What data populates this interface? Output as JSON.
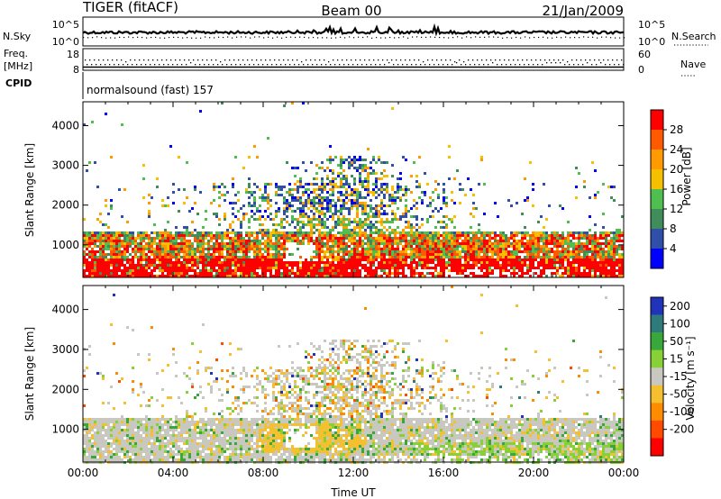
{
  "header": {
    "radar": "TIGER (fitACF)",
    "beam": "Beam 00",
    "date": "21/Jan/2009"
  },
  "side_labels": {
    "nsky": "N.Sky",
    "nsearch": "N.Search",
    "freq": "Freq.",
    "freq_unit": "[MHz]",
    "nave": "Nave",
    "cpid": "CPID"
  },
  "strip_ticks": {
    "nsky_top": "10^5",
    "nsky_bottom": "10^0",
    "nsearch_top": "10^5",
    "nsearch_bottom": "10^0",
    "freq_top": "18",
    "freq_bottom": "8",
    "nave_top": "60",
    "nave_bottom": "0"
  },
  "cpid_text": "normalsound (fast) 157",
  "colors": {
    "power": [
      "#0000ff",
      "#2f4faa",
      "#3e8d5a",
      "#4fc04f",
      "#f5c000",
      "#ff9a00",
      "#ff5a00",
      "#ff0000"
    ],
    "velocity": [
      "#2233bb",
      "#2f7a7a",
      "#38a83a",
      "#88d038",
      "#c8c8c0",
      "#f5c030",
      "#ff8c00",
      "#ff4a00",
      "#ff0000"
    ]
  },
  "chart_data": [
    {
      "type": "heatmap",
      "xlabel": "",
      "ylabel": "Slant Range [km]",
      "x_ticks": [
        "00:00",
        "04:00",
        "08:00",
        "12:00",
        "16:00",
        "20:00",
        "00:00"
      ],
      "y_ticks": [
        1000,
        2000,
        3000,
        4000
      ],
      "ylim": [
        180,
        4600
      ],
      "colorbar": {
        "label": "Power [dB]",
        "ticks": [
          "4",
          "8",
          "12",
          "16",
          "20",
          "24",
          "28"
        ]
      }
    },
    {
      "type": "heatmap",
      "xlabel": "Time UT",
      "ylabel": "Slant Range [km]",
      "x_ticks": [
        "00:00",
        "04:00",
        "08:00",
        "12:00",
        "16:00",
        "20:00",
        "00:00"
      ],
      "y_ticks": [
        1000,
        2000,
        3000,
        4000
      ],
      "ylim": [
        180,
        4600
      ],
      "colorbar": {
        "label": "Velocity [m s⁻¹]",
        "ticks": [
          "200",
          "100",
          "50",
          "15",
          "-15",
          "-50",
          "-100",
          "-200"
        ]
      }
    }
  ]
}
